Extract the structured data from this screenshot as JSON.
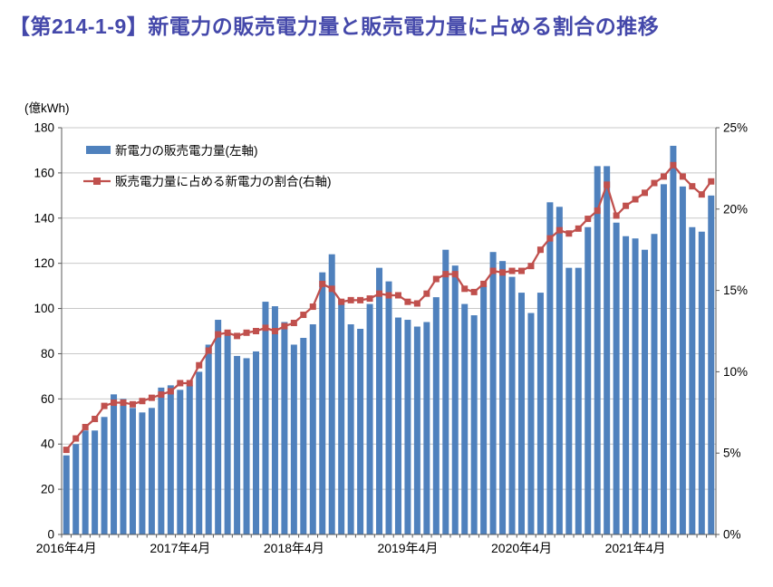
{
  "title": {
    "text": "【第214-1-9】新電力の販売電力量と販売電力量に占める割合の推移",
    "color": "#4448aa"
  },
  "chart_data": {
    "type": "bar+line",
    "unit_label": "(億kWh)",
    "left_axis": {
      "min": 0,
      "max": 180,
      "step": 20
    },
    "right_axis": {
      "min": 0,
      "max": 25,
      "step": 5,
      "suffix": "%"
    },
    "x_tick_labels": [
      "2016年4月",
      "2017年4月",
      "2018年4月",
      "2019年4月",
      "2020年4月",
      "2021年4月"
    ],
    "x_months": [
      "2016-04",
      "2016-05",
      "2016-06",
      "2016-07",
      "2016-08",
      "2016-09",
      "2016-10",
      "2016-11",
      "2016-12",
      "2017-01",
      "2017-02",
      "2017-03",
      "2017-04",
      "2017-05",
      "2017-06",
      "2017-07",
      "2017-08",
      "2017-09",
      "2017-10",
      "2017-11",
      "2017-12",
      "2018-01",
      "2018-02",
      "2018-03",
      "2018-04",
      "2018-05",
      "2018-06",
      "2018-07",
      "2018-08",
      "2018-09",
      "2018-10",
      "2018-11",
      "2018-12",
      "2019-01",
      "2019-02",
      "2019-03",
      "2019-04",
      "2019-05",
      "2019-06",
      "2019-07",
      "2019-08",
      "2019-09",
      "2019-10",
      "2019-11",
      "2019-12",
      "2020-01",
      "2020-02",
      "2020-03",
      "2020-04",
      "2020-05",
      "2020-06",
      "2020-07",
      "2020-08",
      "2020-09",
      "2020-10",
      "2020-11",
      "2020-12",
      "2021-01",
      "2021-02",
      "2021-03",
      "2021-04",
      "2021-05",
      "2021-06",
      "2021-07",
      "2021-08",
      "2021-09",
      "2021-10",
      "2021-11",
      "2021-12"
    ],
    "series": [
      {
        "name": "新電力の販売電力量(左軸)",
        "type": "bar",
        "axis": "left",
        "color": "#4f81bd",
        "values": [
          35,
          40,
          46,
          46,
          52,
          62,
          60,
          56,
          54,
          56,
          65,
          66,
          64,
          66,
          72,
          84,
          95,
          88,
          79,
          78,
          81,
          103,
          101,
          94,
          84,
          87,
          93,
          116,
          124,
          104,
          93,
          91,
          102,
          118,
          112,
          96,
          95,
          92,
          94,
          105,
          126,
          119,
          102,
          97,
          110,
          125,
          121,
          114,
          107,
          98,
          107,
          147,
          145,
          118,
          118,
          136,
          163,
          163,
          138,
          132,
          131,
          126,
          133,
          155,
          172,
          154,
          136,
          134,
          150
        ]
      },
      {
        "name": "販売電力量に占める新電力の割合(右軸)",
        "type": "line",
        "axis": "right",
        "unit": "%",
        "color": "#c0504d",
        "values": [
          5.2,
          5.9,
          6.6,
          7.1,
          7.9,
          8.1,
          8.1,
          8.0,
          8.2,
          8.4,
          8.6,
          8.8,
          9.3,
          9.3,
          10.4,
          11.3,
          12.3,
          12.4,
          12.2,
          12.4,
          12.5,
          12.7,
          12.5,
          12.8,
          13.0,
          13.5,
          14.0,
          15.4,
          15.1,
          14.3,
          14.4,
          14.4,
          14.5,
          14.8,
          14.7,
          14.7,
          14.3,
          14.2,
          14.8,
          15.7,
          16.0,
          16.0,
          15.1,
          14.9,
          15.4,
          16.2,
          16.1,
          16.2,
          16.2,
          16.5,
          17.5,
          18.2,
          18.7,
          18.5,
          18.8,
          19.4,
          19.9,
          21.5,
          19.6,
          20.2,
          20.6,
          21.0,
          21.6,
          22.0,
          22.7,
          22.0,
          21.4,
          20.9,
          21.7
        ]
      }
    ],
    "grid": true,
    "legend_position": "top-left-inside",
    "colors": {
      "gridline": "#c8c8c8",
      "axis": "#595959",
      "tick_text": "#000000"
    }
  }
}
